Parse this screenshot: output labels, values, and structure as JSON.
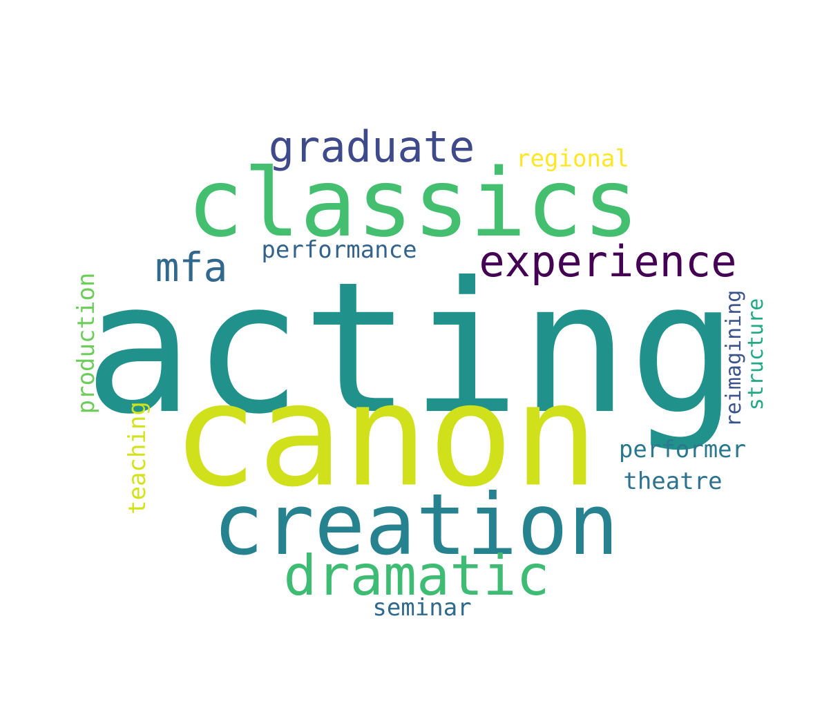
{
  "words": [
    {
      "key": "acting",
      "text": "acting",
      "color": "#21918c",
      "orientation": "horizontal"
    },
    {
      "key": "canon",
      "text": "canon",
      "color": "#d0e11c",
      "orientation": "horizontal"
    },
    {
      "key": "classics",
      "text": "classics",
      "color": "#44bf70",
      "orientation": "horizontal"
    },
    {
      "key": "creation",
      "text": "creation",
      "color": "#26828e",
      "orientation": "horizontal"
    },
    {
      "key": "dramatic",
      "text": "dramatic",
      "color": "#3fbc73",
      "orientation": "horizontal"
    },
    {
      "key": "experience",
      "text": "experience",
      "color": "#440154",
      "orientation": "horizontal"
    },
    {
      "key": "graduate",
      "text": "graduate",
      "color": "#3e4a89",
      "orientation": "horizontal"
    },
    {
      "key": "mfa",
      "text": "mfa",
      "color": "#31688e",
      "orientation": "horizontal"
    },
    {
      "key": "performance",
      "text": "performance",
      "color": "#33638d",
      "orientation": "horizontal"
    },
    {
      "key": "regional",
      "text": "regional",
      "color": "#fde725",
      "orientation": "horizontal"
    },
    {
      "key": "production",
      "text": "production",
      "color": "#6ccd5a",
      "orientation": "vertical"
    },
    {
      "key": "teaching",
      "text": "teaching",
      "color": "#d2e21b",
      "orientation": "vertical"
    },
    {
      "key": "reimagining",
      "text": "reimagining",
      "color": "#3b528b",
      "orientation": "vertical"
    },
    {
      "key": "structure",
      "text": "structure",
      "color": "#22a884",
      "orientation": "vertical"
    },
    {
      "key": "performer",
      "text": "performer",
      "color": "#2a788e",
      "orientation": "horizontal"
    },
    {
      "key": "theatre",
      "text": "theatre",
      "color": "#2c728e",
      "orientation": "horizontal"
    },
    {
      "key": "seminar",
      "text": "seminar",
      "color": "#30698e",
      "orientation": "horizontal"
    }
  ]
}
